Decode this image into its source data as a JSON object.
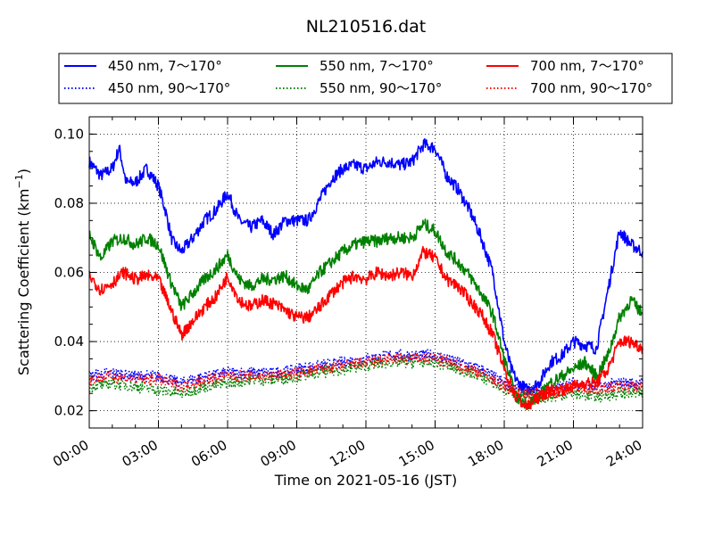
{
  "chart_data": {
    "type": "line",
    "title": "NL210516.dat",
    "xlabel": "Time on 2021-05-16 (JST)",
    "ylabel": "Scattering Coefficient (km",
    "ylabel_unit_exp": "−1",
    "ylabel_close": ")",
    "x_unit": "hours",
    "xlim": [
      0,
      24
    ],
    "ylim": [
      0.015,
      0.105
    ],
    "x_ticks": [
      0,
      3,
      6,
      9,
      12,
      15,
      18,
      21,
      24
    ],
    "x_tick_labels": [
      "00:00",
      "03:00",
      "06:00",
      "09:00",
      "12:00",
      "15:00",
      "18:00",
      "21:00",
      "24:00"
    ],
    "y_ticks": [
      0.02,
      0.04,
      0.06,
      0.08,
      0.1
    ],
    "y_tick_labels": [
      "0.02",
      "0.04",
      "0.06",
      "0.08",
      "0.10"
    ],
    "grid": true,
    "legend_position": "top, above plot",
    "series": [
      {
        "name": "450 nm, 7～170°",
        "color": "#0000ff",
        "style": "solid",
        "x": [
          0,
          0.5,
          1,
          1.3,
          1.6,
          2,
          2.5,
          3,
          3.3,
          3.6,
          4,
          4.5,
          5,
          5.5,
          6,
          6.5,
          7,
          7.5,
          8,
          8.5,
          9,
          9.5,
          10,
          10.5,
          11,
          11.5,
          12,
          12.5,
          13,
          13.5,
          14,
          14.5,
          15,
          15.5,
          16,
          16.5,
          17,
          17.5,
          18,
          18.3,
          18.6,
          19,
          19.5,
          20,
          20.5,
          21,
          21.5,
          22,
          22.5,
          23,
          23.5,
          24
        ],
        "values": [
          0.092,
          0.088,
          0.09,
          0.096,
          0.086,
          0.086,
          0.09,
          0.085,
          0.078,
          0.069,
          0.066,
          0.07,
          0.075,
          0.078,
          0.083,
          0.075,
          0.073,
          0.075,
          0.071,
          0.075,
          0.075,
          0.075,
          0.081,
          0.087,
          0.09,
          0.091,
          0.09,
          0.092,
          0.092,
          0.091,
          0.092,
          0.097,
          0.096,
          0.088,
          0.084,
          0.078,
          0.07,
          0.06,
          0.04,
          0.032,
          0.028,
          0.026,
          0.028,
          0.034,
          0.036,
          0.04,
          0.039,
          0.038,
          0.055,
          0.072,
          0.068,
          0.066
        ]
      },
      {
        "name": "450 nm, 90～170°",
        "color": "#0000ff",
        "style": "dotted",
        "x": [
          0,
          1,
          2,
          3,
          4,
          5,
          6,
          7,
          8,
          9,
          10,
          11,
          12,
          13,
          14,
          15,
          16,
          17,
          18,
          19,
          20,
          21,
          22,
          23,
          24
        ],
        "values": [
          0.03,
          0.031,
          0.03,
          0.03,
          0.028,
          0.03,
          0.031,
          0.031,
          0.031,
          0.032,
          0.033,
          0.034,
          0.035,
          0.036,
          0.036,
          0.036,
          0.034,
          0.032,
          0.028,
          0.026,
          0.026,
          0.028,
          0.027,
          0.028,
          0.028
        ]
      },
      {
        "name": "550 nm, 7～170°",
        "color": "#008000",
        "style": "solid",
        "x": [
          0,
          0.5,
          1,
          1.5,
          2,
          2.5,
          3,
          3.5,
          4,
          4.5,
          5,
          5.5,
          6,
          6.5,
          7,
          7.5,
          8,
          8.5,
          9,
          9.5,
          10,
          10.5,
          11,
          11.5,
          12,
          12.5,
          13,
          13.5,
          14,
          14.5,
          15,
          15.5,
          16,
          16.5,
          17,
          17.5,
          18,
          18.5,
          19,
          19.5,
          20,
          20.5,
          21,
          21.5,
          22,
          22.5,
          23,
          23.5,
          24
        ],
        "values": [
          0.071,
          0.064,
          0.069,
          0.07,
          0.068,
          0.07,
          0.068,
          0.058,
          0.05,
          0.054,
          0.058,
          0.061,
          0.065,
          0.058,
          0.056,
          0.058,
          0.058,
          0.059,
          0.056,
          0.055,
          0.06,
          0.063,
          0.066,
          0.068,
          0.069,
          0.069,
          0.07,
          0.07,
          0.07,
          0.074,
          0.072,
          0.066,
          0.063,
          0.059,
          0.054,
          0.048,
          0.035,
          0.024,
          0.022,
          0.024,
          0.028,
          0.03,
          0.032,
          0.034,
          0.03,
          0.036,
          0.047,
          0.052,
          0.048
        ]
      },
      {
        "name": "550 nm, 90～170°",
        "color": "#008000",
        "style": "dotted",
        "x": [
          0,
          1,
          2,
          3,
          4,
          5,
          6,
          7,
          8,
          9,
          10,
          11,
          12,
          13,
          14,
          15,
          16,
          17,
          18,
          19,
          20,
          21,
          22,
          23,
          24
        ],
        "values": [
          0.027,
          0.028,
          0.027,
          0.026,
          0.025,
          0.027,
          0.028,
          0.029,
          0.029,
          0.03,
          0.031,
          0.032,
          0.033,
          0.034,
          0.034,
          0.034,
          0.032,
          0.03,
          0.026,
          0.024,
          0.024,
          0.025,
          0.024,
          0.025,
          0.025
        ]
      },
      {
        "name": "700 nm, 7～170°",
        "color": "#ff0000",
        "style": "solid",
        "x": [
          0,
          0.5,
          1,
          1.5,
          2,
          2.5,
          3,
          3.5,
          4,
          4.5,
          5,
          5.5,
          6,
          6.5,
          7,
          7.5,
          8,
          8.5,
          9,
          9.5,
          10,
          10.5,
          11,
          11.5,
          12,
          12.5,
          13,
          13.5,
          14,
          14.5,
          15,
          15.5,
          16,
          16.5,
          17,
          17.5,
          18,
          18.5,
          19,
          19.5,
          20,
          20.5,
          21,
          21.5,
          22,
          22.5,
          23,
          23.5,
          24
        ],
        "values": [
          0.059,
          0.055,
          0.057,
          0.06,
          0.058,
          0.059,
          0.058,
          0.05,
          0.042,
          0.046,
          0.05,
          0.053,
          0.059,
          0.052,
          0.05,
          0.052,
          0.051,
          0.049,
          0.047,
          0.047,
          0.05,
          0.054,
          0.057,
          0.059,
          0.058,
          0.06,
          0.059,
          0.06,
          0.059,
          0.066,
          0.064,
          0.058,
          0.056,
          0.052,
          0.048,
          0.042,
          0.032,
          0.024,
          0.021,
          0.024,
          0.026,
          0.026,
          0.027,
          0.028,
          0.028,
          0.032,
          0.04,
          0.04,
          0.038
        ]
      },
      {
        "name": "700 nm, 90～170°",
        "color": "#ff0000",
        "style": "dotted",
        "x": [
          0,
          1,
          2,
          3,
          4,
          5,
          6,
          7,
          8,
          9,
          10,
          11,
          12,
          13,
          14,
          15,
          16,
          17,
          18,
          19,
          20,
          21,
          22,
          23,
          24
        ],
        "values": [
          0.029,
          0.03,
          0.029,
          0.029,
          0.027,
          0.029,
          0.03,
          0.03,
          0.03,
          0.031,
          0.032,
          0.033,
          0.034,
          0.035,
          0.035,
          0.035,
          0.033,
          0.031,
          0.027,
          0.025,
          0.025,
          0.027,
          0.026,
          0.027,
          0.027
        ]
      }
    ]
  }
}
